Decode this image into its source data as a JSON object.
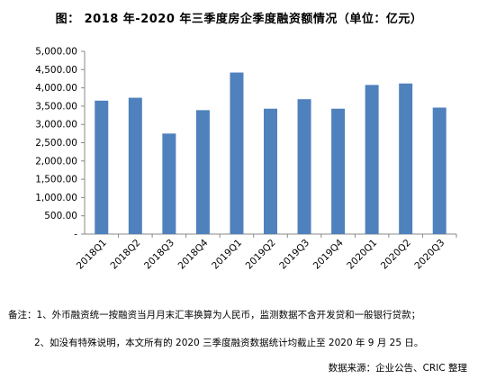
{
  "title": "图：  2018 年-2020 年三季度房企季度融资额情况（单位：亿元）",
  "notes": {
    "line1": "备注：1、外币融资统一按融资当月月末汇率换算为人民币，监测数据不含开发贷和一般银行贷款；",
    "line2": "2、如没有特殊说明，本文所有的 2020 三季度融资数据统计均截止至 2020 年 9 月 25 日。"
  },
  "source": "数据来源：企业公告、CRIC 整理",
  "chart_data": {
    "type": "bar",
    "title": "图：  2018 年-2020 年三季度房企季度融资额情况（单位：亿元）",
    "xlabel": "",
    "ylabel": "",
    "categories": [
      "2018Q1",
      "2018Q2",
      "2018Q3",
      "2018Q4",
      "2019Q1",
      "2019Q2",
      "2019Q3",
      "2019Q4",
      "2020Q1",
      "2020Q2",
      "2020Q3"
    ],
    "values": [
      3650,
      3730,
      2750,
      3390,
      4420,
      3430,
      3690,
      3430,
      4080,
      4120,
      3460
    ],
    "ylim": [
      0,
      5000
    ],
    "yticks": [
      "-",
      "500.00",
      "1,000.00",
      "1,500.00",
      "2,000.00",
      "2,500.00",
      "3,000.00",
      "3,500.00",
      "4,000.00",
      "4,500.00",
      "5,000.00"
    ],
    "bar_color": "#4f81bd",
    "grid": false,
    "legend": "none"
  }
}
